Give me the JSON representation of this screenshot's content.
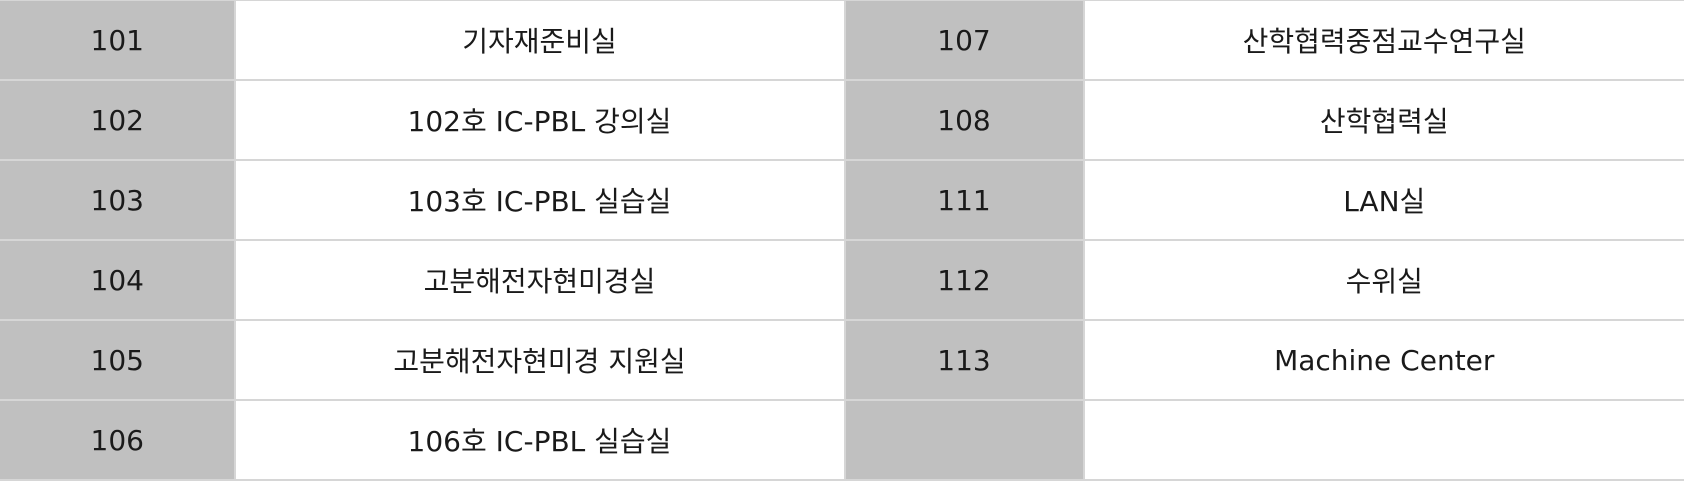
{
  "rooms": {
    "rows": [
      [
        {
          "number": "101",
          "name": "기자재준비실"
        },
        {
          "number": "107",
          "name": "산학협력중점교수연구실"
        }
      ],
      [
        {
          "number": "102",
          "name": "102호 IC-PBL 강의실"
        },
        {
          "number": "108",
          "name": "산학협력실"
        }
      ],
      [
        {
          "number": "103",
          "name": "103호 IC-PBL 실습실"
        },
        {
          "number": "111",
          "name": "LAN실"
        }
      ],
      [
        {
          "number": "104",
          "name": "고분해전자현미경실"
        },
        {
          "number": "112",
          "name": "수위실"
        }
      ],
      [
        {
          "number": "105",
          "name": "고분해전자현미경 지원실"
        },
        {
          "number": "113",
          "name": "Machine Center"
        }
      ],
      [
        {
          "number": "106",
          "name": "106호 IC-PBL 실습실"
        },
        {
          "number": "",
          "name": ""
        }
      ]
    ]
  }
}
